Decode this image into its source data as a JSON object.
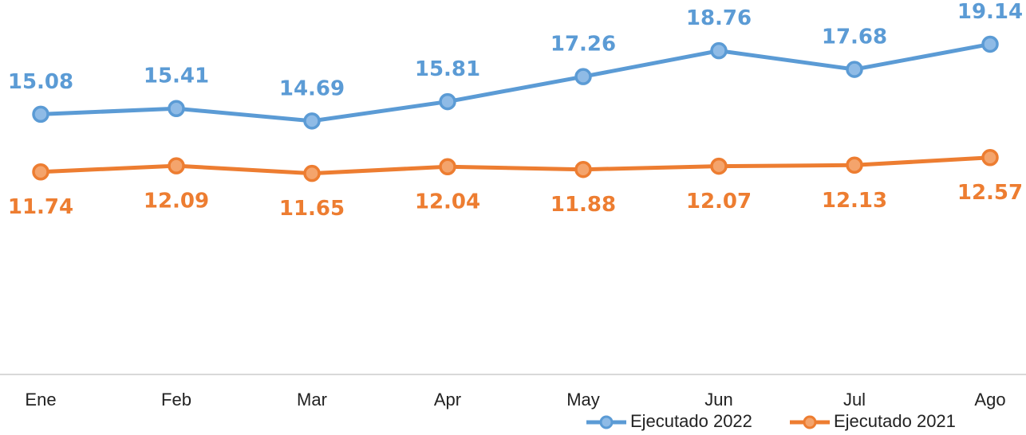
{
  "chart_data": {
    "type": "line",
    "categories": [
      "Ene",
      "Feb",
      "Mar",
      "Apr",
      "May",
      "Jun",
      "Jul",
      "Ago"
    ],
    "series": [
      {
        "name": "Ejecutado 2022",
        "color": "#5b9bd5",
        "values": [
          15.08,
          15.41,
          14.69,
          15.81,
          17.26,
          18.76,
          17.68,
          19.14
        ]
      },
      {
        "name": "Ejecutado 2021",
        "color": "#ed7d31",
        "values": [
          11.74,
          12.09,
          11.65,
          12.04,
          11.88,
          12.07,
          12.13,
          12.57
        ]
      }
    ],
    "ylim": [
      0,
      21.7
    ],
    "legend": "bottom"
  }
}
